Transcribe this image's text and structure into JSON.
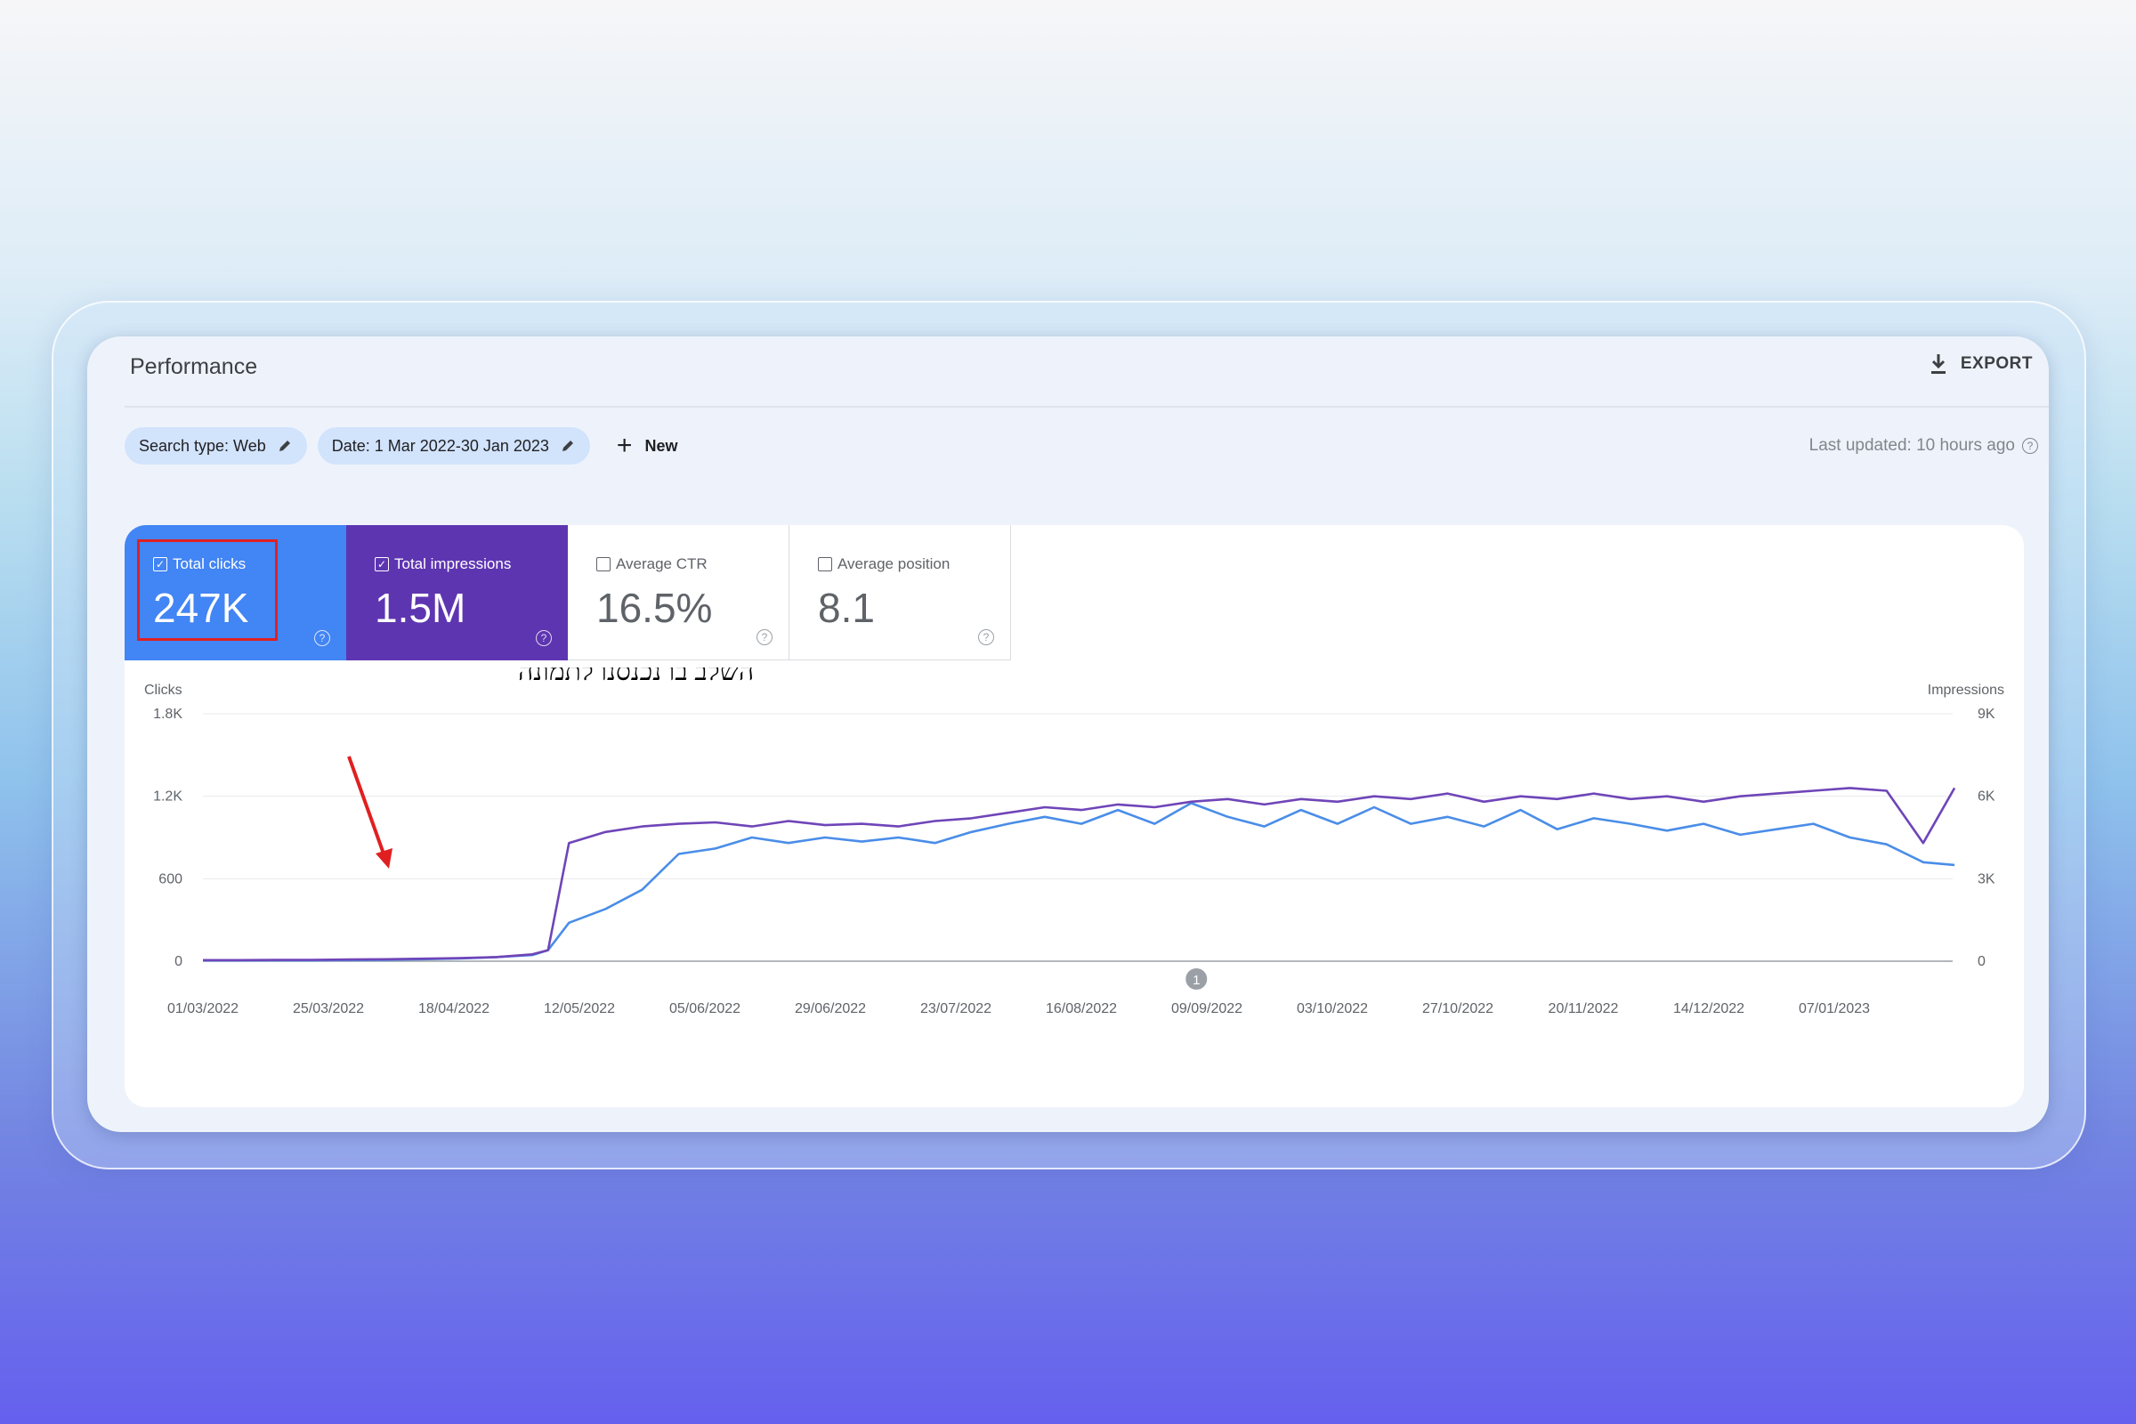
{
  "header": {
    "title": "Performance",
    "export_label": "EXPORT"
  },
  "filters": {
    "search_type": "Search type: Web",
    "date": "Date: 1 Mar 2022-30 Jan 2023",
    "new_label": "New",
    "last_updated": "Last updated: 10 hours ago"
  },
  "metrics": [
    {
      "label": "Total clicks",
      "value": "247K",
      "checked": true,
      "color": "#4285f4"
    },
    {
      "label": "Total impressions",
      "value": "1.5M",
      "checked": true,
      "color": "#5e35b1"
    },
    {
      "label": "Average CTR",
      "value": "16.5%",
      "checked": false
    },
    {
      "label": "Average position",
      "value": "8.1",
      "checked": false
    }
  ],
  "annotation": {
    "text": "השלב בו נכנסנו לתמונה",
    "arrow_color": "#e02020"
  },
  "chart_data": {
    "type": "line",
    "ylabel_left": "Clicks",
    "ylabel_right": "Impressions",
    "y_left_ticks": [
      "1.8K",
      "1.2K",
      "600",
      "0"
    ],
    "y_right_ticks": [
      "9K",
      "6K",
      "3K",
      "0"
    ],
    "ylim_left": [
      0,
      1800
    ],
    "ylim_right": [
      0,
      9000
    ],
    "x_ticks": [
      "01/03/2022",
      "25/03/2022",
      "18/04/2022",
      "12/05/2022",
      "05/06/2022",
      "29/06/2022",
      "23/07/2022",
      "16/08/2022",
      "09/09/2022",
      "03/10/2022",
      "27/10/2022",
      "20/11/2022",
      "14/12/2022",
      "07/01/2023"
    ],
    "marker": {
      "label": "1",
      "date": "07/09/2022"
    },
    "grid": true,
    "series": [
      {
        "name": "Clicks",
        "color": "#4a8de8",
        "axis": "left",
        "x": [
          "01/03/2022",
          "08/03/2022",
          "15/03/2022",
          "22/03/2022",
          "29/03/2022",
          "05/04/2022",
          "12/04/2022",
          "19/04/2022",
          "26/04/2022",
          "03/05/2022",
          "06/05/2022",
          "10/05/2022",
          "17/05/2022",
          "24/05/2022",
          "31/05/2022",
          "07/06/2022",
          "14/06/2022",
          "21/06/2022",
          "28/06/2022",
          "05/07/2022",
          "12/07/2022",
          "19/07/2022",
          "26/07/2022",
          "02/08/2022",
          "09/08/2022",
          "16/08/2022",
          "23/08/2022",
          "30/08/2022",
          "06/09/2022",
          "13/09/2022",
          "20/09/2022",
          "27/09/2022",
          "04/10/2022",
          "11/10/2022",
          "18/10/2022",
          "25/10/2022",
          "01/11/2022",
          "08/11/2022",
          "15/11/2022",
          "22/11/2022",
          "29/11/2022",
          "06/12/2022",
          "13/12/2022",
          "20/12/2022",
          "27/12/2022",
          "03/01/2023",
          "10/01/2023",
          "17/01/2023",
          "24/01/2023",
          "30/01/2023"
        ],
        "values": [
          5,
          5,
          6,
          6,
          8,
          10,
          14,
          20,
          30,
          45,
          80,
          280,
          380,
          520,
          780,
          820,
          900,
          860,
          900,
          870,
          900,
          860,
          940,
          1000,
          1050,
          1000,
          1100,
          1000,
          1150,
          1050,
          980,
          1100,
          1000,
          1120,
          1000,
          1050,
          980,
          1100,
          960,
          1040,
          1000,
          950,
          1000,
          920,
          960,
          1000,
          900,
          850,
          720,
          700
        ]
      },
      {
        "name": "Impressions",
        "color": "#6f45b8",
        "axis": "right",
        "x": [
          "01/03/2022",
          "08/03/2022",
          "15/03/2022",
          "22/03/2022",
          "29/03/2022",
          "05/04/2022",
          "12/04/2022",
          "19/04/2022",
          "26/04/2022",
          "03/05/2022",
          "06/05/2022",
          "10/05/2022",
          "17/05/2022",
          "24/05/2022",
          "31/05/2022",
          "07/06/2022",
          "14/06/2022",
          "21/06/2022",
          "28/06/2022",
          "05/07/2022",
          "12/07/2022",
          "19/07/2022",
          "26/07/2022",
          "02/08/2022",
          "09/08/2022",
          "16/08/2022",
          "23/08/2022",
          "30/08/2022",
          "06/09/2022",
          "13/09/2022",
          "20/09/2022",
          "27/09/2022",
          "04/10/2022",
          "11/10/2022",
          "18/10/2022",
          "25/10/2022",
          "01/11/2022",
          "08/11/2022",
          "15/11/2022",
          "22/11/2022",
          "29/11/2022",
          "06/12/2022",
          "13/12/2022",
          "20/12/2022",
          "27/12/2022",
          "03/01/2023",
          "10/01/2023",
          "17/01/2023",
          "24/01/2023",
          "30/01/2023"
        ],
        "values": [
          40,
          40,
          45,
          50,
          60,
          70,
          90,
          110,
          150,
          250,
          400,
          4300,
          4700,
          4900,
          5000,
          5050,
          4900,
          5100,
          4950,
          5000,
          4900,
          5100,
          5200,
          5400,
          5600,
          5500,
          5700,
          5600,
          5800,
          5900,
          5700,
          5900,
          5800,
          6000,
          5900,
          6100,
          5800,
          6000,
          5900,
          6100,
          5900,
          6000,
          5800,
          6000,
          6100,
          6200,
          6300,
          6200,
          4300,
          6300
        ]
      }
    ]
  }
}
